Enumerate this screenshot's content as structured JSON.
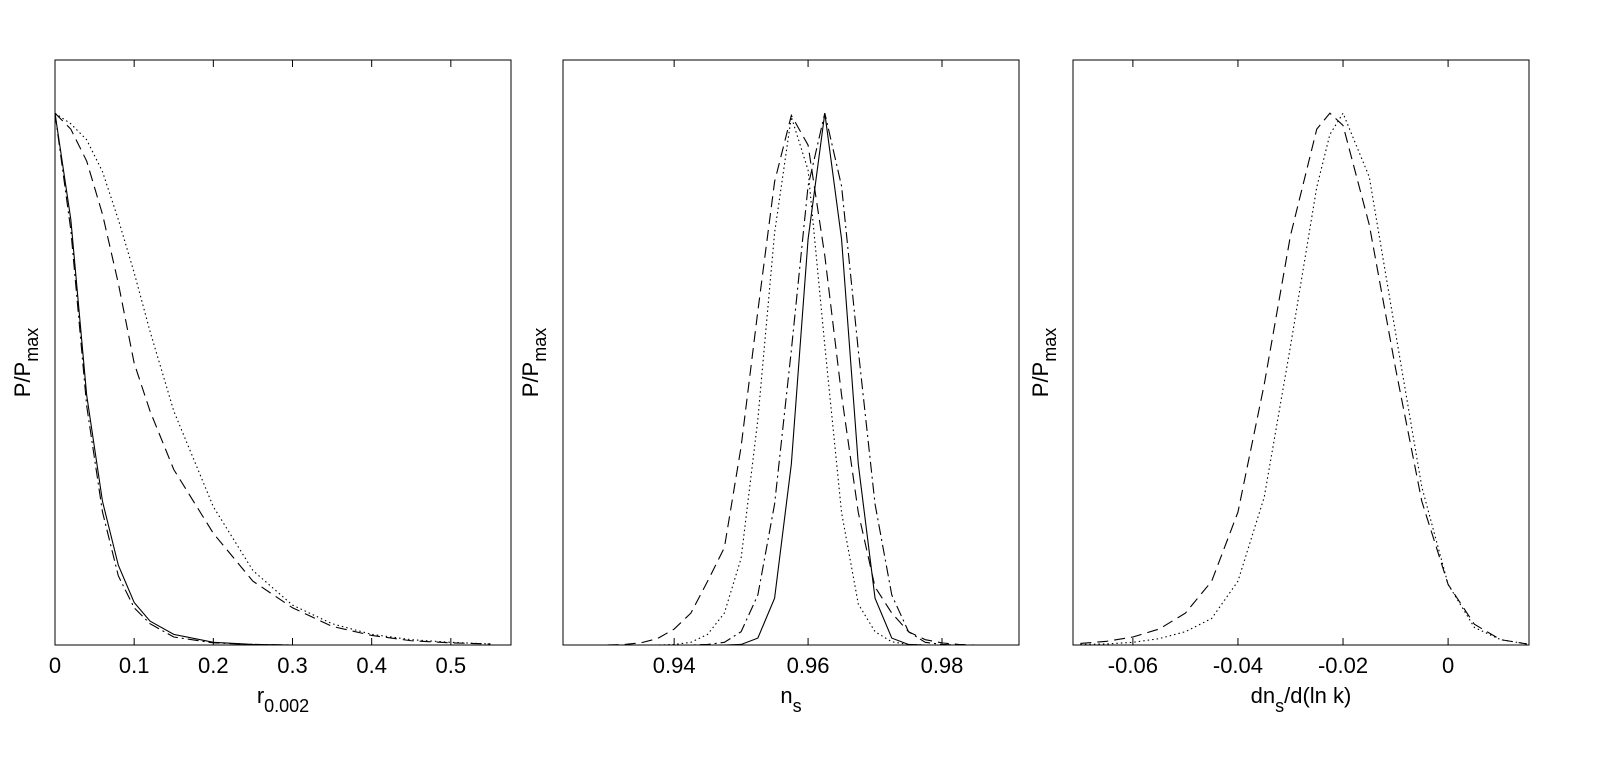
{
  "chart_data": [
    {
      "type": "line",
      "ylabel": [
        "P/P",
        "max"
      ],
      "xlabel": [
        "r",
        "0.002"
      ],
      "xlim": [
        0,
        0.576
      ],
      "ylim": [
        0,
        1.1
      ],
      "xticks": [
        0,
        0.1,
        0.2,
        0.3,
        0.4,
        0.5
      ],
      "x": [
        0,
        0.02,
        0.04,
        0.06,
        0.08,
        0.1,
        0.12,
        0.15,
        0.2,
        0.25,
        0.3,
        0.35,
        0.4,
        0.45,
        0.5,
        0.55
      ],
      "series": [
        {
          "color": "#000000",
          "dash": "solid",
          "values": [
            1,
            0.8,
            0.47,
            0.27,
            0.15,
            0.08,
            0.045,
            0.02,
            0.005,
            0.001,
            0,
            0,
            0,
            0,
            0,
            0
          ]
        },
        {
          "color": "#000000",
          "dash": "dashdot",
          "values": [
            1,
            0.78,
            0.45,
            0.25,
            0.13,
            0.07,
            0.04,
            0.015,
            0.004,
            0.001,
            0,
            0,
            0,
            0,
            0,
            0
          ]
        },
        {
          "color": "#000000",
          "dash": "dashed",
          "values": [
            1,
            0.97,
            0.91,
            0.81,
            0.68,
            0.53,
            0.44,
            0.33,
            0.21,
            0.12,
            0.07,
            0.035,
            0.018,
            0.008,
            0.004,
            0.002
          ]
        },
        {
          "color": "#000000",
          "dash": "dotted",
          "values": [
            1,
            0.98,
            0.95,
            0.89,
            0.8,
            0.7,
            0.59,
            0.44,
            0.26,
            0.14,
            0.075,
            0.04,
            0.02,
            0.01,
            0.005,
            0.002
          ]
        }
      ]
    },
    {
      "type": "line",
      "ylabel": [
        "P/P",
        "max"
      ],
      "xlabel": [
        "n",
        "s"
      ],
      "xlim": [
        0.9234,
        0.9915
      ],
      "ylim": [
        0,
        1.1
      ],
      "xticks": [
        0.94,
        0.96,
        0.98
      ],
      "x": [
        0.925,
        0.9275,
        0.93,
        0.9325,
        0.935,
        0.9375,
        0.94,
        0.9425,
        0.945,
        0.9475,
        0.95,
        0.9525,
        0.955,
        0.9575,
        0.96,
        0.9625,
        0.965,
        0.9675,
        0.97,
        0.9725,
        0.975,
        0.9775,
        0.98,
        0.9825,
        0.985,
        0.9875,
        0.99
      ],
      "series": [
        {
          "color": "#000000",
          "dash": "solid",
          "values": [
            0,
            0,
            0,
            0,
            0,
            0,
            0,
            0,
            0,
            0,
            0.001,
            0.013,
            0.088,
            0.34,
            0.763,
            1,
            0.763,
            0.34,
            0.088,
            0.013,
            0.001,
            0,
            0,
            0,
            0,
            0,
            0
          ]
        },
        {
          "color": "#000000",
          "dash": "dashdot",
          "values": [
            0,
            0,
            0,
            0,
            0,
            0,
            0,
            0,
            0.001,
            0.005,
            0.025,
            0.094,
            0.265,
            0.554,
            0.863,
            1,
            0.863,
            0.554,
            0.265,
            0.094,
            0.025,
            0.005,
            0.001,
            0,
            0,
            0,
            0
          ]
        },
        {
          "color": "#000000",
          "dash": "dashed",
          "values": [
            0,
            0,
            0,
            0.001,
            0.004,
            0.012,
            0.03,
            0.06,
            0.12,
            0.183,
            0.373,
            0.628,
            0.871,
            0.996,
            0.94,
            0.732,
            0.47,
            0.249,
            0.109,
            0.06,
            0.025,
            0.01,
            0.004,
            0.001,
            0,
            0,
            0
          ]
        },
        {
          "color": "#000000",
          "dash": "dotted",
          "values": [
            0,
            0,
            0,
            0,
            0,
            0,
            0.001,
            0.005,
            0.02,
            0.06,
            0.163,
            0.424,
            0.775,
            0.993,
            0.893,
            0.563,
            0.249,
            0.077,
            0.025,
            0.006,
            0.001,
            0,
            0,
            0,
            0,
            0,
            0
          ]
        }
      ]
    },
    {
      "type": "line",
      "ylabel": [
        "P/P",
        "max"
      ],
      "xlabel": [
        "dn",
        "s",
        "/d(ln k)"
      ],
      "xlim": [
        -0.0714,
        0.0154
      ],
      "ylim": [
        0,
        1.1
      ],
      "xticks": [
        -0.06,
        -0.04,
        -0.02,
        0
      ],
      "x": [
        -0.07,
        -0.065,
        -0.06,
        -0.055,
        -0.05,
        -0.045,
        -0.04,
        -0.035,
        -0.03,
        -0.025,
        -0.0225,
        -0.02,
        -0.015,
        -0.01,
        -0.005,
        0,
        0.005,
        0.01,
        0.015
      ],
      "series": [
        {
          "color": "#000000",
          "dash": "dashed",
          "values": [
            0.003,
            0.007,
            0.015,
            0.03,
            0.06,
            0.12,
            0.25,
            0.49,
            0.77,
            0.97,
            1,
            0.977,
            0.79,
            0.52,
            0.27,
            0.114,
            0.039,
            0.01,
            0.002
          ]
        },
        {
          "color": "#000000",
          "dash": "dotted",
          "values": [
            0.001,
            0.002,
            0.005,
            0.012,
            0.025,
            0.05,
            0.12,
            0.278,
            0.562,
            0.861,
            0.96,
            1,
            0.88,
            0.587,
            0.297,
            0.114,
            0.033,
            0.01,
            0.002
          ]
        }
      ]
    }
  ]
}
